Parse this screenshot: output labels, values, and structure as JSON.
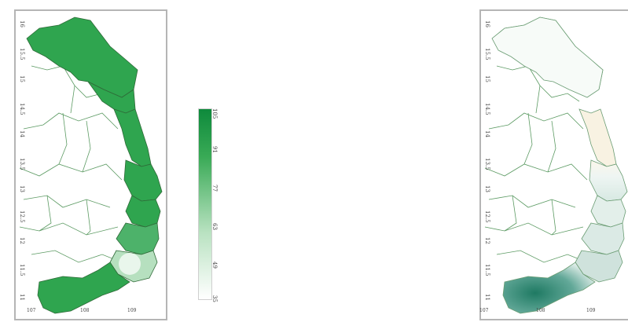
{
  "left_map": {
    "y_ticks": [
      "16",
      "15.5",
      "15",
      "14.5",
      "14",
      "13.5",
      "13",
      "12.5",
      "12",
      "11.5",
      "11"
    ],
    "x_ticks": [
      "107",
      "108",
      "109"
    ],
    "fill_color": "#2fa54f",
    "outline_color": "#3a7d44"
  },
  "right_map": {
    "y_ticks": [
      "16",
      "15.5",
      "15",
      "14.5",
      "14",
      "13.5",
      "13",
      "12.5",
      "12",
      "11.5",
      "11"
    ],
    "x_ticks": [
      "107",
      "108",
      "109"
    ],
    "accent_color": "#1f7a63"
  },
  "colorbar": {
    "ticks": [
      "105",
      "91",
      "77",
      "63",
      "49",
      "35"
    ],
    "colors": [
      "#ffffff",
      "#0e8a3c"
    ]
  }
}
